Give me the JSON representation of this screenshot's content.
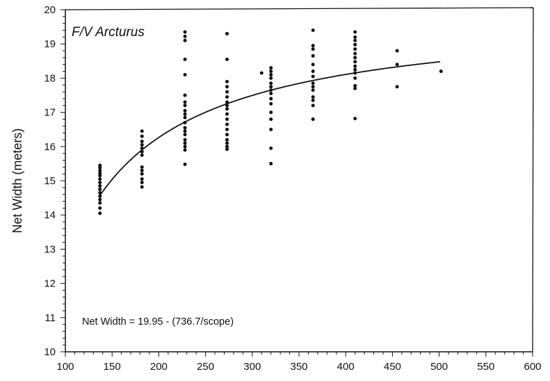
{
  "chart_data": {
    "type": "scatter",
    "title": "F/V Arcturus",
    "xlabel": "",
    "ylabel": "Net Width (meters)",
    "annotation": "Net Width = 19.95 - (736.7/scope)",
    "xlim": [
      100,
      600
    ],
    "ylim": [
      10,
      20
    ],
    "x_ticks": [
      100,
      150,
      200,
      250,
      300,
      350,
      400,
      450,
      500,
      550,
      600
    ],
    "y_ticks": [
      10,
      11,
      12,
      13,
      14,
      15,
      16,
      17,
      18,
      19,
      20
    ],
    "x_tick_labels": [
      "100",
      "150",
      "200",
      "250",
      "300",
      "350",
      "400",
      "450",
      "500",
      "550",
      "600"
    ],
    "y_tick_labels": [
      "10",
      "11",
      "12",
      "13",
      "14",
      "15",
      "16",
      "17",
      "18",
      "19",
      "20"
    ],
    "grid": false,
    "series": [
      {
        "type": "scatter",
        "points": [
          [
            137,
            15.45
          ],
          [
            137,
            15.38
          ],
          [
            137,
            15.3
          ],
          [
            137,
            15.22
          ],
          [
            137,
            15.15
          ],
          [
            137,
            15.05
          ],
          [
            137,
            14.95
          ],
          [
            137,
            14.85
          ],
          [
            137,
            14.75
          ],
          [
            137,
            14.65
          ],
          [
            137,
            14.55
          ],
          [
            137,
            14.45
          ],
          [
            137,
            14.35
          ],
          [
            137,
            14.2
          ],
          [
            137,
            14.05
          ],
          [
            182,
            16.45
          ],
          [
            182,
            16.3
          ],
          [
            182,
            16.15
          ],
          [
            182,
            16.05
          ],
          [
            182,
            15.95
          ],
          [
            182,
            15.85
          ],
          [
            182,
            15.75
          ],
          [
            182,
            15.4
          ],
          [
            182,
            15.3
          ],
          [
            182,
            15.2
          ],
          [
            182,
            15.05
          ],
          [
            182,
            14.95
          ],
          [
            182,
            14.82
          ],
          [
            228,
            19.35
          ],
          [
            228,
            19.22
          ],
          [
            228,
            19.1
          ],
          [
            228,
            18.55
          ],
          [
            228,
            18.1
          ],
          [
            228,
            17.5
          ],
          [
            228,
            17.3
          ],
          [
            228,
            17.2
          ],
          [
            228,
            17.05
          ],
          [
            228,
            16.95
          ],
          [
            228,
            16.85
          ],
          [
            228,
            16.7
          ],
          [
            228,
            16.55
          ],
          [
            228,
            16.45
          ],
          [
            228,
            16.35
          ],
          [
            228,
            16.2
          ],
          [
            228,
            16.1
          ],
          [
            228,
            16.0
          ],
          [
            228,
            15.9
          ],
          [
            228,
            15.48
          ],
          [
            273,
            19.3
          ],
          [
            273,
            18.55
          ],
          [
            273,
            17.9
          ],
          [
            273,
            17.75
          ],
          [
            273,
            17.6
          ],
          [
            273,
            17.45
          ],
          [
            273,
            17.3
          ],
          [
            273,
            17.2
          ],
          [
            273,
            17.1
          ],
          [
            273,
            16.95
          ],
          [
            273,
            16.8
          ],
          [
            273,
            16.65
          ],
          [
            273,
            16.5
          ],
          [
            273,
            16.35
          ],
          [
            273,
            16.2
          ],
          [
            273,
            16.1
          ],
          [
            273,
            16.0
          ],
          [
            273,
            15.92
          ],
          [
            310,
            18.15
          ],
          [
            320,
            18.3
          ],
          [
            320,
            18.2
          ],
          [
            320,
            18.1
          ],
          [
            320,
            18.0
          ],
          [
            320,
            17.85
          ],
          [
            320,
            17.75
          ],
          [
            320,
            17.65
          ],
          [
            320,
            17.55
          ],
          [
            320,
            17.4
          ],
          [
            320,
            17.25
          ],
          [
            320,
            17.0
          ],
          [
            320,
            16.8
          ],
          [
            320,
            16.5
          ],
          [
            320,
            15.95
          ],
          [
            320,
            15.5
          ],
          [
            365,
            19.4
          ],
          [
            365,
            18.95
          ],
          [
            365,
            18.85
          ],
          [
            365,
            18.65
          ],
          [
            365,
            18.4
          ],
          [
            365,
            18.2
          ],
          [
            365,
            18.05
          ],
          [
            365,
            17.85
          ],
          [
            365,
            17.75
          ],
          [
            365,
            17.65
          ],
          [
            365,
            17.45
          ],
          [
            365,
            17.35
          ],
          [
            365,
            17.2
          ],
          [
            365,
            16.8
          ],
          [
            410,
            19.35
          ],
          [
            410,
            19.2
          ],
          [
            410,
            19.1
          ],
          [
            410,
            18.98
          ],
          [
            410,
            18.85
          ],
          [
            410,
            18.72
          ],
          [
            410,
            18.6
          ],
          [
            410,
            18.48
          ],
          [
            410,
            18.35
          ],
          [
            410,
            18.25
          ],
          [
            410,
            18.15
          ],
          [
            410,
            18.0
          ],
          [
            410,
            17.78
          ],
          [
            410,
            17.7
          ],
          [
            410,
            16.82
          ],
          [
            455,
            18.8
          ],
          [
            455,
            18.4
          ],
          [
            455,
            17.75
          ],
          [
            502,
            18.2
          ]
        ]
      },
      {
        "type": "line",
        "x_range": [
          137,
          502
        ]
      }
    ]
  }
}
